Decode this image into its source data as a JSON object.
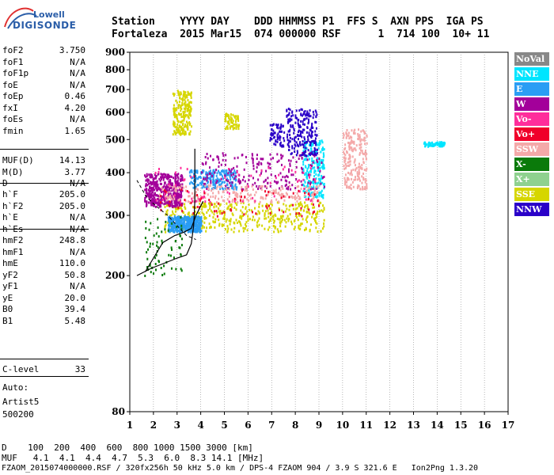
{
  "logo": {
    "line1": "Lowell",
    "line2": "DIGISONDE"
  },
  "header": {
    "line1": "Station    YYYY DAY    DDD HHMMSS P1  FFS S  AXN PPS  IGA PS",
    "line2": "Fortaleza  2015 Mar15  074 000000 RSF      1  714 100  10+ 11"
  },
  "params": {
    "group1": [
      {
        "k": "foF2",
        "v": "3.750"
      },
      {
        "k": "foF1",
        "v": "N/A"
      },
      {
        "k": "foF1p",
        "v": "N/A"
      },
      {
        "k": "foE",
        "v": "N/A"
      },
      {
        "k": "foEp",
        "v": "0.46"
      },
      {
        "k": "fxI",
        "v": "4.20"
      },
      {
        "k": "foEs",
        "v": "N/A"
      },
      {
        "k": "fmin",
        "v": "1.65"
      }
    ],
    "group2": [
      {
        "k": "MUF(D)",
        "v": "14.13"
      },
      {
        "k": "M(D)",
        "v": "3.77"
      },
      {
        "k": "D",
        "v": "N/A"
      }
    ],
    "group3": [
      {
        "k": "h`F",
        "v": "205.0"
      },
      {
        "k": "h`F2",
        "v": "205.0"
      },
      {
        "k": "h`E",
        "v": "N/A"
      },
      {
        "k": "h`Es",
        "v": "N/A"
      }
    ],
    "group4": [
      {
        "k": "hmF2",
        "v": "248.8"
      },
      {
        "k": "hmF1",
        "v": "N/A"
      },
      {
        "k": "hmE",
        "v": "110.0"
      },
      {
        "k": "yF2",
        "v": "50.8"
      },
      {
        "k": "yF1",
        "v": "N/A"
      },
      {
        "k": "yE",
        "v": "20.0"
      },
      {
        "k": "B0",
        "v": "39.4"
      },
      {
        "k": "B1",
        "v": "5.48"
      }
    ],
    "group5": [
      {
        "k": "C-level",
        "v": "33"
      }
    ],
    "auto_label": "Auto:",
    "artist": "Artist5",
    "version": "500200"
  },
  "legend": [
    {
      "label": "NoVal",
      "color": "#888888"
    },
    {
      "label": "NNE",
      "color": "#00e5ff"
    },
    {
      "label": "E",
      "color": "#2a9df4"
    },
    {
      "label": "W",
      "color": "#a3009a"
    },
    {
      "label": "Vo-",
      "color": "#ff2d9b"
    },
    {
      "label": "Vo+",
      "color": "#f0002a"
    },
    {
      "label": "SSW",
      "color": "#f4a9a9"
    },
    {
      "label": "X-",
      "color": "#0a7a0a"
    },
    {
      "label": "X+",
      "color": "#8fd18f"
    },
    {
      "label": "SSE",
      "color": "#d6d600"
    },
    {
      "label": "NNW",
      "color": "#2a00c8"
    }
  ],
  "bottom": {
    "line1": "D    100  200  400  600  800 1000 1500 3000 [km]",
    "line2": "MUF   4.1  4.1  4.4  4.7  5.3  6.0  8.3 14.1 [MHz]",
    "line3": "FZAOM_2015074000000.RSF / 320fx256h 50 kHz 5.0 km / DPS-4 FZAOM 904 / 3.9 S 321.6 E   Ion2Png 1.3.20"
  },
  "chart_data": {
    "type": "scatter",
    "title": "",
    "xlabel": "",
    "ylabel": "",
    "xlim": [
      1,
      17
    ],
    "ylim": [
      80,
      900
    ],
    "y_scale": "log",
    "x_ticks": [
      1,
      2,
      3,
      4,
      5,
      6,
      7,
      8,
      9,
      10,
      11,
      12,
      13,
      14,
      15,
      16,
      17
    ],
    "y_ticks": [
      80,
      200,
      300,
      400,
      500,
      600,
      700,
      800,
      900
    ],
    "grid": "dotted vertical at integer MHz",
    "clusters": [
      {
        "class": "SSE",
        "x_range": [
          2.4,
          9.2
        ],
        "h_range": [
          270,
          330
        ],
        "density": "high"
      },
      {
        "class": "SSE",
        "x_range": [
          2.8,
          3.6
        ],
        "h_range": [
          520,
          700
        ],
        "density": "medium"
      },
      {
        "class": "SSE",
        "x_range": [
          5,
          5.6
        ],
        "h_range": [
          540,
          600
        ],
        "density": "low"
      },
      {
        "class": "E",
        "x_range": [
          2.6,
          4
        ],
        "h_range": [
          270,
          300
        ],
        "density": "high"
      },
      {
        "class": "E",
        "x_range": [
          3.5,
          5.5
        ],
        "h_range": [
          360,
          410
        ],
        "density": "medium"
      },
      {
        "class": "NNE",
        "x_range": [
          8.3,
          9.2
        ],
        "h_range": [
          340,
          500
        ],
        "density": "medium"
      },
      {
        "class": "W",
        "x_range": [
          1.6,
          3.2
        ],
        "h_range": [
          320,
          400
        ],
        "density": "high"
      },
      {
        "class": "W",
        "x_range": [
          4,
          9.2
        ],
        "h_range": [
          360,
          460
        ],
        "density": "medium"
      },
      {
        "class": "NNW",
        "x_range": [
          7.6,
          8.9
        ],
        "h_range": [
          450,
          620
        ],
        "density": "medium"
      },
      {
        "class": "NNW",
        "x_range": [
          6.9,
          7.5
        ],
        "h_range": [
          480,
          560
        ],
        "density": "low"
      },
      {
        "class": "SSW",
        "x_range": [
          10,
          11
        ],
        "h_range": [
          360,
          540
        ],
        "density": "medium"
      },
      {
        "class": "SSW",
        "x_range": [
          2.2,
          9
        ],
        "h_range": [
          330,
          370
        ],
        "density": "medium"
      },
      {
        "class": "Vo-",
        "x_range": [
          2,
          9
        ],
        "h_range": [
          330,
          420
        ],
        "density": "low"
      },
      {
        "class": "Vo+",
        "x_range": [
          2.2,
          9
        ],
        "h_range": [
          300,
          360
        ],
        "density": "low"
      },
      {
        "class": "X-",
        "x_range": [
          1.6,
          3.2
        ],
        "h_range": [
          200,
          300
        ],
        "density": "low"
      },
      {
        "class": "NNE",
        "x_range": [
          13.4,
          14.3
        ],
        "h_range": [
          480,
          495
        ],
        "density": "low"
      }
    ],
    "profile_curve": [
      {
        "x": 1.3,
        "h": 200
      },
      {
        "x": 1.9,
        "h": 210
      },
      {
        "x": 2.5,
        "h": 218
      },
      {
        "x": 3.0,
        "h": 225
      },
      {
        "x": 3.4,
        "h": 230
      },
      {
        "x": 3.6,
        "h": 248
      },
      {
        "x": 3.7,
        "h": 280
      },
      {
        "x": 3.75,
        "h": 330
      },
      {
        "x": 3.75,
        "h": 470
      }
    ],
    "trace_line": [
      {
        "x": 1.65,
        "h": 205
      },
      {
        "x": 2.0,
        "h": 225
      },
      {
        "x": 2.4,
        "h": 250
      },
      {
        "x": 2.9,
        "h": 262
      },
      {
        "x": 3.3,
        "h": 268
      },
      {
        "x": 3.6,
        "h": 275
      },
      {
        "x": 3.8,
        "h": 300
      },
      {
        "x": 4.1,
        "h": 330
      }
    ],
    "dashed_line": [
      {
        "x": 1.3,
        "h": 380
      },
      {
        "x": 1.7,
        "h": 340
      },
      {
        "x": 2.1,
        "h": 320
      },
      {
        "x": 2.6,
        "h": 300
      },
      {
        "x": 3.0,
        "h": 280
      },
      {
        "x": 3.4,
        "h": 262
      },
      {
        "x": 3.8,
        "h": 255
      }
    ]
  }
}
